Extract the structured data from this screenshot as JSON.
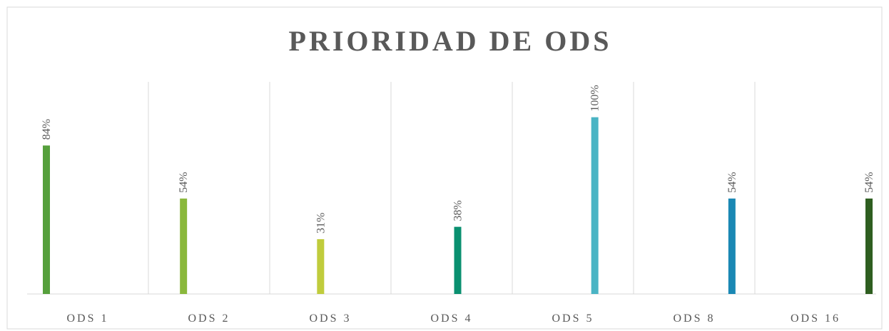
{
  "chart_data": {
    "type": "bar",
    "title": "PRIORIDAD DE ODS",
    "categories": [
      "ODS 1",
      "ODS 2",
      "ODS 3",
      "ODS 4",
      "ODS 5",
      "ODS 8",
      "ODS 16"
    ],
    "values": [
      84,
      54,
      31,
      38,
      100,
      54,
      54
    ],
    "value_labels": [
      "84%",
      "54%",
      "31%",
      "38%",
      "100%",
      "54%",
      "54%"
    ],
    "colors": [
      "#56a03c",
      "#8ab83c",
      "#c0cc3c",
      "#0a9070",
      "#4ab4c4",
      "#1a88b4",
      "#2e5e20"
    ],
    "ylim": [
      0,
      120
    ]
  }
}
